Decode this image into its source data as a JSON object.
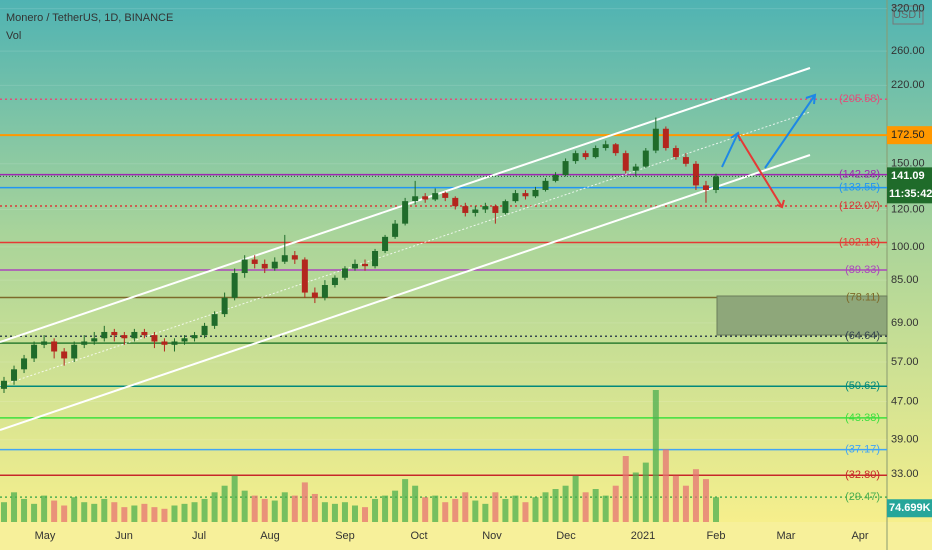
{
  "chart_data": {
    "type": "candlestick",
    "title": "Monero / TetherUS, 1D, BINANCE",
    "subtitle": "Vol",
    "axis_unit": "USDT",
    "log_scale": true,
    "ylim": [
      26.1,
      333.7
    ],
    "yticks": [
      {
        "value": 320,
        "label": "320.00"
      },
      {
        "value": 260,
        "label": "260.00"
      },
      {
        "value": 220,
        "label": "220.00"
      },
      {
        "value": 150,
        "label": "150.00"
      },
      {
        "value": 120,
        "label": "120.00"
      },
      {
        "value": 100,
        "label": "100.00"
      },
      {
        "value": 85,
        "label": "85.00"
      },
      {
        "value": 69,
        "label": "69.00"
      },
      {
        "value": 57,
        "label": "57.00"
      },
      {
        "value": 47,
        "label": "47.00"
      },
      {
        "value": 39,
        "label": "39.00"
      },
      {
        "value": 33,
        "label": "33.00"
      }
    ],
    "xticks": [
      "May",
      "Jun",
      "Jul",
      "Aug",
      "Sep",
      "Oct",
      "Nov",
      "Dec",
      "2021",
      "Feb",
      "Mar",
      "Apr"
    ],
    "up_color": "#1f6b2a",
    "down_color": "#b3261e",
    "candles": [
      [
        50,
        53,
        49,
        52
      ],
      [
        52,
        56,
        51,
        55
      ],
      [
        55,
        59,
        54,
        58
      ],
      [
        58,
        63,
        57,
        62
      ],
      [
        62,
        65,
        61,
        63
      ],
      [
        63,
        64,
        58,
        60
      ],
      [
        60,
        61,
        56,
        58
      ],
      [
        58,
        63,
        57,
        62
      ],
      [
        62,
        65,
        61,
        63
      ],
      [
        63,
        66,
        62,
        64
      ],
      [
        64,
        68,
        63,
        66
      ],
      [
        66,
        67,
        63,
        65
      ],
      [
        65,
        66,
        62,
        64
      ],
      [
        64,
        67,
        63,
        66
      ],
      [
        66,
        67,
        64,
        65
      ],
      [
        65,
        66,
        61,
        63
      ],
      [
        63,
        64,
        60,
        62
      ],
      [
        62,
        64,
        60,
        63
      ],
      [
        63,
        65,
        62,
        64
      ],
      [
        64,
        66,
        63,
        65
      ],
      [
        65,
        69,
        64,
        68
      ],
      [
        68,
        73,
        67,
        72
      ],
      [
        72,
        80,
        71,
        78
      ],
      [
        78,
        90,
        77,
        88
      ],
      [
        88,
        96,
        86,
        94
      ],
      [
        94,
        96,
        90,
        92
      ],
      [
        92,
        94,
        88,
        90
      ],
      [
        90,
        95,
        89,
        93
      ],
      [
        93,
        106,
        92,
        96
      ],
      [
        96,
        98,
        92,
        94
      ],
      [
        94,
        95,
        78,
        80
      ],
      [
        80,
        82,
        76,
        78
      ],
      [
        78,
        85,
        77,
        83
      ],
      [
        83,
        87,
        82,
        86
      ],
      [
        86,
        91,
        85,
        90
      ],
      [
        90,
        94,
        89,
        92
      ],
      [
        92,
        94,
        89,
        91
      ],
      [
        91,
        99,
        90,
        98
      ],
      [
        98,
        106,
        97,
        105
      ],
      [
        105,
        114,
        104,
        112
      ],
      [
        112,
        127,
        111,
        125
      ],
      [
        125,
        138,
        123,
        128
      ],
      [
        128,
        130,
        124,
        126
      ],
      [
        126,
        133,
        125,
        130
      ],
      [
        130,
        131,
        125,
        127
      ],
      [
        127,
        128,
        120,
        122
      ],
      [
        122,
        124,
        116,
        118
      ],
      [
        118,
        122,
        116,
        120
      ],
      [
        120,
        124,
        118,
        122
      ],
      [
        122,
        123,
        112,
        118
      ],
      [
        118,
        126,
        117,
        125
      ],
      [
        125,
        132,
        124,
        130
      ],
      [
        130,
        132,
        126,
        128
      ],
      [
        128,
        134,
        127,
        132
      ],
      [
        132,
        140,
        131,
        138
      ],
      [
        138,
        144,
        137,
        142
      ],
      [
        142,
        154,
        141,
        152
      ],
      [
        152,
        160,
        150,
        158
      ],
      [
        158,
        160,
        153,
        155
      ],
      [
        155,
        164,
        154,
        162
      ],
      [
        162,
        168,
        160,
        165
      ],
      [
        165,
        166,
        156,
        158
      ],
      [
        158,
        160,
        143,
        145
      ],
      [
        145,
        150,
        141,
        148
      ],
      [
        148,
        162,
        147,
        160
      ],
      [
        160,
        188,
        158,
        178
      ],
      [
        178,
        180,
        160,
        162
      ],
      [
        162,
        164,
        153,
        155
      ],
      [
        155,
        158,
        148,
        150
      ],
      [
        150,
        152,
        132,
        135
      ],
      [
        135,
        138,
        124,
        132
      ],
      [
        132,
        143,
        130,
        141
      ]
    ],
    "volume": [
      60,
      90,
      70,
      55,
      80,
      65,
      50,
      75,
      60,
      55,
      70,
      60,
      45,
      50,
      55,
      45,
      40,
      50,
      55,
      60,
      70,
      90,
      110,
      140,
      95,
      80,
      70,
      65,
      90,
      80,
      120,
      85,
      60,
      55,
      60,
      50,
      45,
      70,
      80,
      95,
      130,
      110,
      75,
      80,
      60,
      70,
      90,
      65,
      55,
      90,
      70,
      80,
      60,
      75,
      90,
      100,
      110,
      140,
      90,
      100,
      80,
      110,
      200,
      150,
      180,
      400,
      220,
      140,
      110,
      160,
      130,
      75
    ],
    "vlim": [
      0,
      500
    ],
    "volume_label": "74.699K",
    "current_price": {
      "value": 141.09,
      "label": "141.09"
    },
    "countdown": "11:35:42",
    "levels": [
      {
        "value": 205.58,
        "label": "(205.58)",
        "color": "#e0507a",
        "dash": true
      },
      {
        "value": 172.5,
        "label": "172.50",
        "color": "#ff9800",
        "boxed": true
      },
      {
        "value": 142.28,
        "label": "(142.28)",
        "color": "#9c27b0"
      },
      {
        "value": 133.55,
        "label": "(133.55)",
        "color": "#2196f3"
      },
      {
        "value": 122.07,
        "label": "(122.07)",
        "color": "#d83a3a",
        "dash": true
      },
      {
        "value": 102.16,
        "label": "(102.16)",
        "color": "#e53935"
      },
      {
        "value": 89.33,
        "label": "(89.33)",
        "color": "#ab47bc"
      },
      {
        "value": 78.11,
        "label": "(78.11)",
        "color": "#7d6a2a"
      },
      {
        "value": 64.64,
        "label": "(64.64)",
        "color": "#37474f",
        "dash": true
      },
      {
        "value": 62.5,
        "color": "#2e7d32"
      },
      {
        "value": 50.62,
        "label": "(50.62)",
        "color": "#00897b"
      },
      {
        "value": 43.38,
        "label": "(43.38)",
        "color": "#3ee03e"
      },
      {
        "value": 37.17,
        "label": "(37.17)",
        "color": "#42a5f5"
      },
      {
        "value": 32.8,
        "label": "(32.80)",
        "color": "#c62828"
      },
      {
        "value": 29.47,
        "label": "(29.47)",
        "color": "#4caf50",
        "dash": true
      }
    ]
  }
}
